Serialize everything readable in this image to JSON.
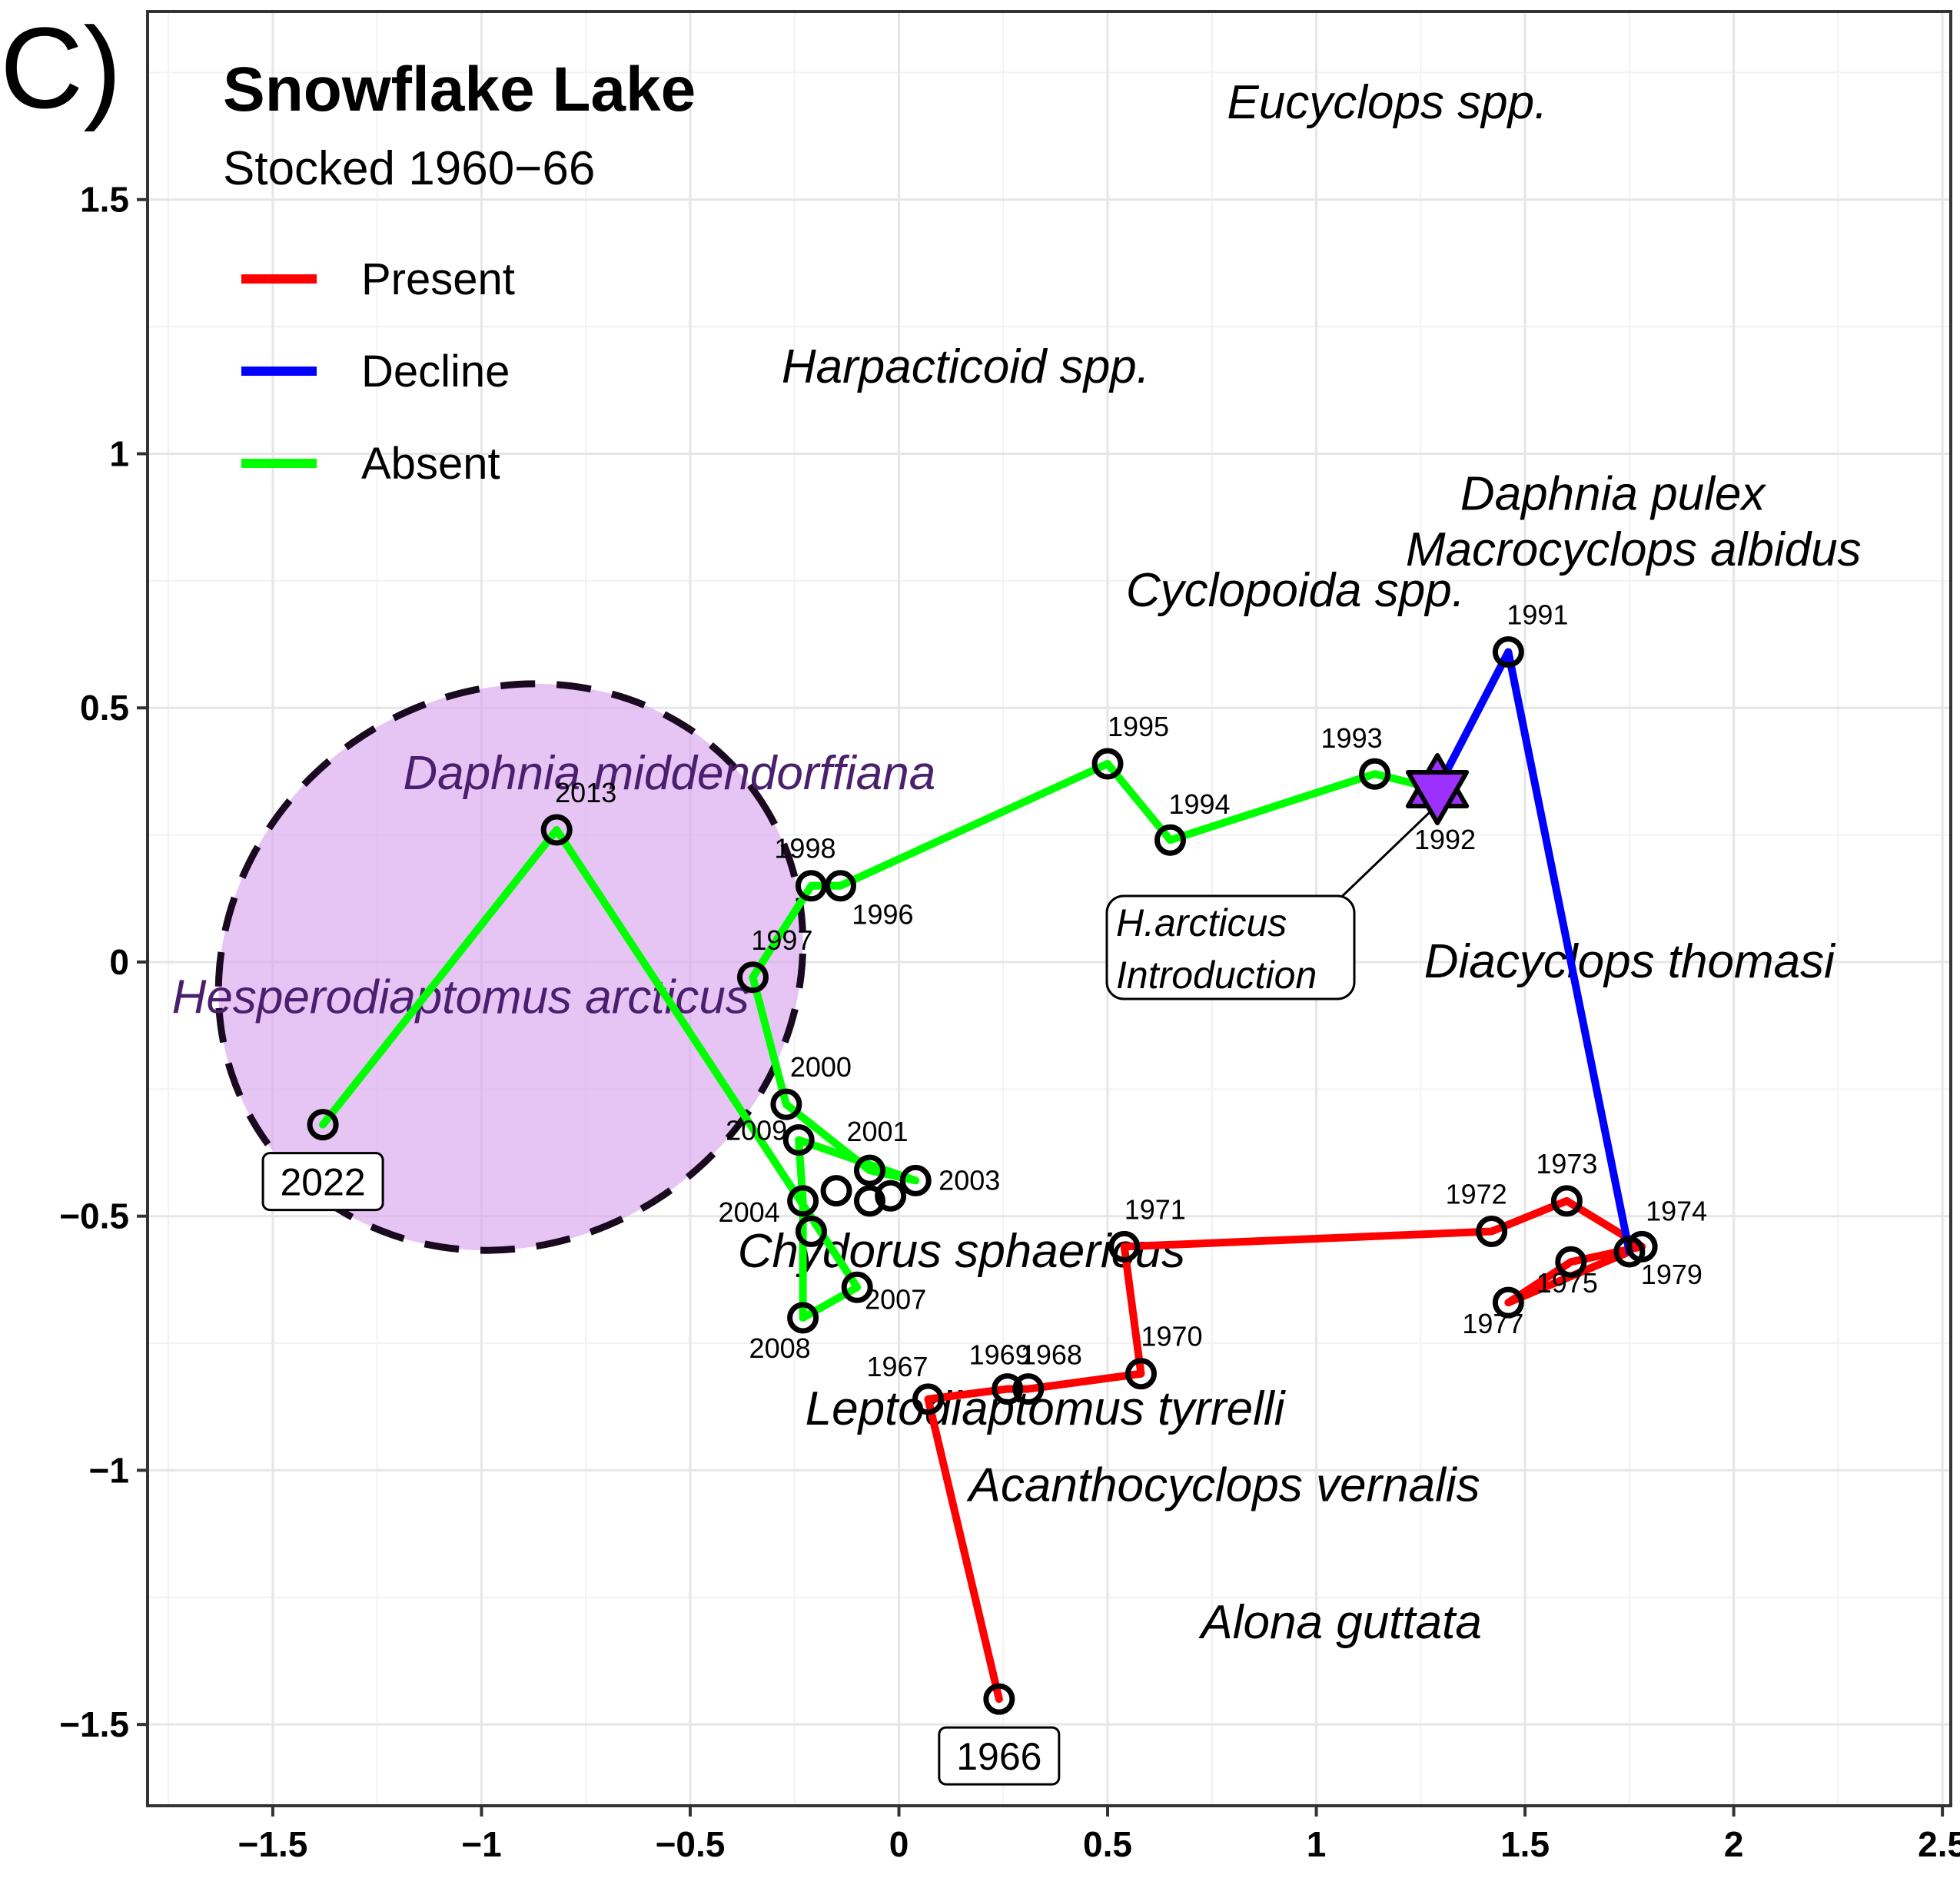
{
  "panel_letter": "C)",
  "chart_data": {
    "type": "line",
    "title": "Snowflake Lake",
    "subtitle": "Stocked 1960−66",
    "xlim": [
      -1.8,
      2.52
    ],
    "ylim": [
      -1.66,
      1.87
    ],
    "x_ticks": [
      -1.5,
      -1,
      -0.5,
      0,
      0.5,
      1,
      1.5,
      2,
      2.5
    ],
    "x_tick_labels": [
      "−1.5",
      "−1",
      "−0.5",
      "0",
      "0.5",
      "1",
      "1.5",
      "2",
      "2.5"
    ],
    "y_ticks": [
      -1.5,
      -1,
      -0.5,
      0,
      0.5,
      1,
      1.5
    ],
    "y_tick_labels": [
      "−1.5",
      "−1",
      "−0.5",
      "0",
      "0.5",
      "1",
      "1.5"
    ],
    "grid": true,
    "legend": {
      "position": "top-left",
      "items": [
        {
          "label": "Present",
          "color": "#ff0000"
        },
        {
          "label": "Decline",
          "color": "#0000ff"
        },
        {
          "label": "Absent",
          "color": "#00ff00"
        }
      ]
    },
    "series": [
      {
        "name": "Present",
        "color": "#ff0000",
        "points": [
          {
            "year": "1966",
            "x": 0.24,
            "y": -1.45
          },
          {
            "year": "1967",
            "x": 0.07,
            "y": -0.86
          },
          {
            "year": "1969",
            "x": 0.26,
            "y": -0.84
          },
          {
            "year": "1968",
            "x": 0.31,
            "y": -0.84
          },
          {
            "year": "1970",
            "x": 0.58,
            "y": -0.81
          },
          {
            "year": "1971",
            "x": 0.54,
            "y": -0.56
          },
          {
            "year": "1972",
            "x": 1.42,
            "y": -0.53
          },
          {
            "year": "1973",
            "x": 1.6,
            "y": -0.47
          },
          {
            "year": "1974",
            "x": 1.78,
            "y": -0.56
          },
          {
            "year": "1975",
            "x": 1.61,
            "y": -0.59
          },
          {
            "year": "1977",
            "x": 1.46,
            "y": -0.67
          },
          {
            "year": "1979",
            "x": 1.75,
            "y": -0.57
          }
        ]
      },
      {
        "name": "Decline",
        "color": "#0000ff",
        "points": [
          {
            "year": "1979",
            "x": 1.75,
            "y": -0.57
          },
          {
            "year": "1991",
            "x": 1.46,
            "y": 0.61
          },
          {
            "year": "1992",
            "x": 1.29,
            "y": 0.34
          }
        ]
      },
      {
        "name": "Absent",
        "color": "#00ff00",
        "points": [
          {
            "year": "1992",
            "x": 1.29,
            "y": 0.34
          },
          {
            "year": "1993",
            "x": 1.14,
            "y": 0.37
          },
          {
            "year": "1994",
            "x": 0.65,
            "y": 0.24
          },
          {
            "year": "1995",
            "x": 0.5,
            "y": 0.39
          },
          {
            "year": "1996",
            "x": -0.14,
            "y": 0.15
          },
          {
            "year": "1998",
            "x": -0.21,
            "y": 0.15
          },
          {
            "year": "1997",
            "x": -0.35,
            "y": -0.03
          },
          {
            "year": "2000",
            "x": -0.27,
            "y": -0.28
          },
          {
            "year": "2001",
            "x": -0.07,
            "y": -0.41
          },
          {
            "year": "2003",
            "x": 0.04,
            "y": -0.43
          },
          {
            "year": "2009",
            "x": -0.24,
            "y": -0.35
          },
          {
            "year": "2004",
            "x": -0.23,
            "y": -0.47
          },
          {
            "year": "2008",
            "x": -0.23,
            "y": -0.7
          },
          {
            "year": "2007",
            "x": -0.1,
            "y": -0.64
          },
          {
            "year": "2013",
            "x": -0.82,
            "y": 0.26
          },
          {
            "year": "2022",
            "x": -1.38,
            "y": -0.32
          }
        ]
      }
    ],
    "unlabeled_points": [
      {
        "x": -0.15,
        "y": -0.45
      },
      {
        "x": -0.07,
        "y": -0.47
      },
      {
        "x": -0.02,
        "y": -0.46
      },
      {
        "x": -0.21,
        "y": -0.53
      }
    ],
    "species_labels": [
      {
        "text": "Eucyclops spp.",
        "x": 1.17,
        "y": 1.69
      },
      {
        "text": "Harpacticoid spp.",
        "x": 0.16,
        "y": 1.17
      },
      {
        "text": "Daphnia pulex",
        "x": 1.71,
        "y": 0.92
      },
      {
        "text": "Macrocyclops albidus",
        "x": 1.76,
        "y": 0.81
      },
      {
        "text": "Cyclopoida spp.",
        "x": 0.95,
        "y": 0.73
      },
      {
        "text": "Daphnia middendorffiana",
        "x": -0.55,
        "y": 0.37,
        "highlight": true
      },
      {
        "text": "Hesperodiaptomus arcticus",
        "x": -1.05,
        "y": -0.07,
        "highlight": true
      },
      {
        "text": "Diacyclops thomasi",
        "x": 1.75,
        "y": 0.0
      },
      {
        "text": "Chydorus sphaericus",
        "x": 0.15,
        "y": -0.57
      },
      {
        "text": "Leptodiaptomus tyrrelli",
        "x": 0.35,
        "y": -0.88
      },
      {
        "text": "Acanthocyclops vernalis",
        "x": 0.78,
        "y": -1.03
      },
      {
        "text": "Alona guttata",
        "x": 1.06,
        "y": -1.3
      }
    ],
    "introduction_marker": {
      "x": 1.29,
      "y": 0.34,
      "color": "#9b30ff"
    },
    "annotation": {
      "lines": [
        "H.arcticus",
        "Introduction"
      ]
    },
    "ellipse": {
      "cx": -0.93,
      "cy": -0.01,
      "rx": 0.72,
      "ry": 0.54,
      "rotation_deg": 35,
      "fill": "#d9a6f0"
    },
    "boxed_year_labels": [
      "1966",
      "2022"
    ]
  }
}
